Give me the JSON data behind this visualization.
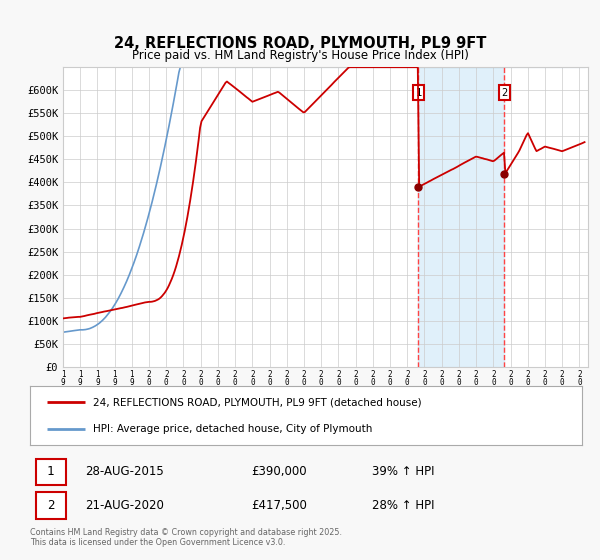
{
  "title": "24, REFLECTIONS ROAD, PLYMOUTH, PL9 9FT",
  "subtitle": "Price paid vs. HM Land Registry's House Price Index (HPI)",
  "xlim_start": 1995.0,
  "xlim_end": 2025.5,
  "ylim_min": 0,
  "ylim_max": 650000,
  "yticks": [
    0,
    50000,
    100000,
    150000,
    200000,
    250000,
    300000,
    350000,
    400000,
    450000,
    500000,
    550000,
    600000
  ],
  "ytick_labels": [
    "£0",
    "£50K",
    "£100K",
    "£150K",
    "£200K",
    "£250K",
    "£300K",
    "£350K",
    "£400K",
    "£450K",
    "£500K",
    "£550K",
    "£600K"
  ],
  "xticks": [
    1995,
    1996,
    1997,
    1998,
    1999,
    2000,
    2001,
    2002,
    2003,
    2004,
    2005,
    2006,
    2007,
    2008,
    2009,
    2010,
    2011,
    2012,
    2013,
    2014,
    2015,
    2016,
    2017,
    2018,
    2019,
    2020,
    2021,
    2022,
    2023,
    2024,
    2025
  ],
  "vline1_x": 2015.65,
  "vline2_x": 2020.64,
  "vline_color": "#ff4444",
  "shade_color": "#d0e8f8",
  "red_line_color": "#cc0000",
  "blue_line_color": "#6699cc",
  "marker_color": "#8b0000",
  "sale1_date": "28-AUG-2015",
  "sale1_price": "£390,000",
  "sale1_pct": "39% ↑ HPI",
  "sale2_date": "21-AUG-2020",
  "sale2_price": "£417,500",
  "sale2_pct": "28% ↑ HPI",
  "legend1": "24, REFLECTIONS ROAD, PLYMOUTH, PL9 9FT (detached house)",
  "legend2": "HPI: Average price, detached house, City of Plymouth",
  "footnote": "Contains HM Land Registry data © Crown copyright and database right 2025.\nThis data is licensed under the Open Government Licence v3.0.",
  "bg_color": "#f8f8f8",
  "plot_bg_color": "#ffffff",
  "grid_color": "#cccccc"
}
